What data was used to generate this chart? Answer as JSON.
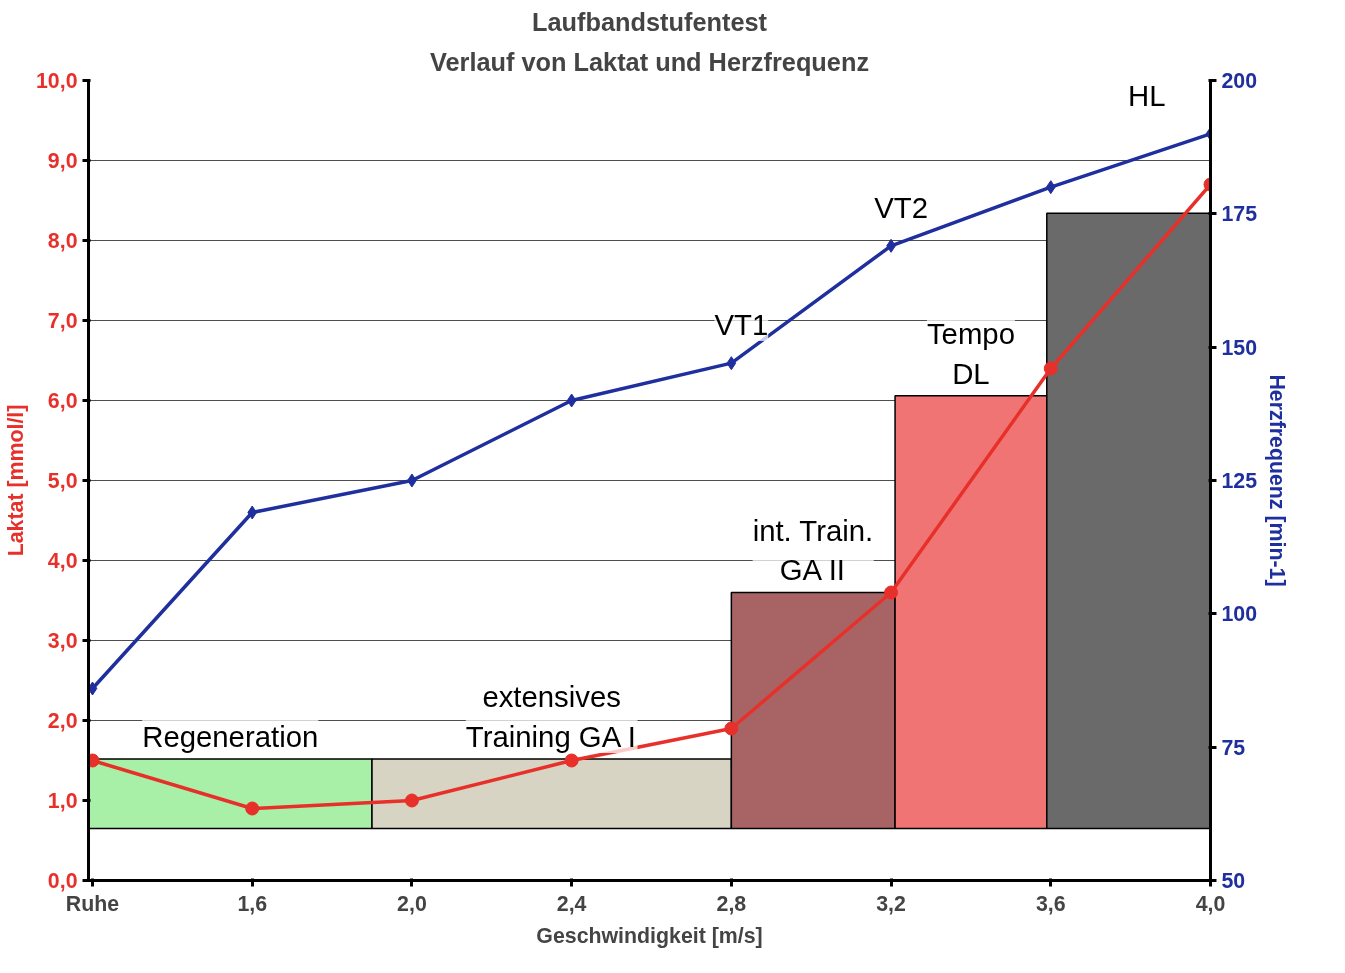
{
  "chart_data": {
    "type": "line",
    "title": "Laufbandstufentest",
    "subtitle": "Verlauf von Laktat und Herzfrequenz",
    "xlabel": "Geschwindigkeit [m/s]",
    "ylabel": "Laktat [mmol/l]",
    "y2label": "Herzfrequenz [min-1]",
    "x": [
      1.2,
      1.6,
      2.0,
      2.4,
      2.8,
      3.2,
      3.6,
      4.0
    ],
    "xlim": [
      1.19,
      4.0
    ],
    "xticks": [
      {
        "value": 1.2,
        "label": "Ruhe"
      },
      {
        "value": 1.6,
        "label": "1,6"
      },
      {
        "value": 2.0,
        "label": "2,0"
      },
      {
        "value": 2.4,
        "label": "2,4"
      },
      {
        "value": 2.8,
        "label": "2,8"
      },
      {
        "value": 3.2,
        "label": "3,2"
      },
      {
        "value": 3.6,
        "label": "3,6"
      },
      {
        "value": 4.0,
        "label": "4,0"
      }
    ],
    "ylim": [
      0,
      10
    ],
    "yticks": [
      {
        "value": 0,
        "label": "0,0"
      },
      {
        "value": 1,
        "label": "1,0"
      },
      {
        "value": 2,
        "label": "2,0"
      },
      {
        "value": 3,
        "label": "3,0"
      },
      {
        "value": 4,
        "label": "4,0"
      },
      {
        "value": 5,
        "label": "5,0"
      },
      {
        "value": 6,
        "label": "6,0"
      },
      {
        "value": 7,
        "label": "7,0"
      },
      {
        "value": 8,
        "label": "8,0"
      },
      {
        "value": 9,
        "label": "9,0"
      },
      {
        "value": 10,
        "label": "10,0"
      }
    ],
    "y2lim": [
      50,
      200
    ],
    "y2ticks": [
      50,
      75,
      100,
      125,
      150,
      175,
      200
    ],
    "grid": "y",
    "series": [
      {
        "type": "histogram",
        "bins": [
          1.19,
          1.9,
          2.8,
          3.21,
          3.59,
          4.0
        ],
        "base": [
          0.65,
          0.65,
          0.65,
          0.65,
          0.65
        ],
        "values": [
          0.87,
          0.87,
          2.95,
          5.41,
          7.69
        ],
        "colors": [
          "#a8f0a8",
          "#d8d4c4",
          "#a86464",
          "#f07474",
          "#6a6a6a"
        ]
      },
      {
        "color": "#e8302a",
        "marker": "circle",
        "values": [
          1.5,
          0.9,
          1.0,
          1.5,
          1.9,
          3.6,
          6.4,
          8.7
        ]
      },
      {
        "color": "#1f2f9e",
        "marker": "diamond",
        "axis": "y2",
        "values": [
          86,
          119,
          125,
          140,
          147,
          169,
          180,
          190
        ]
      }
    ],
    "annotations": [
      "Regeneration",
      "extensives\nTraining GA I",
      "int. Train.\nGA II",
      "Tempo\nDL",
      {
        "text": "VT1",
        "x": 2.8,
        "y": 6.47
      },
      {
        "text": "VT2",
        "x": 3.2,
        "y": 7.93
      },
      {
        "text": "HL",
        "x": 4.0,
        "y": 9.33
      }
    ]
  }
}
